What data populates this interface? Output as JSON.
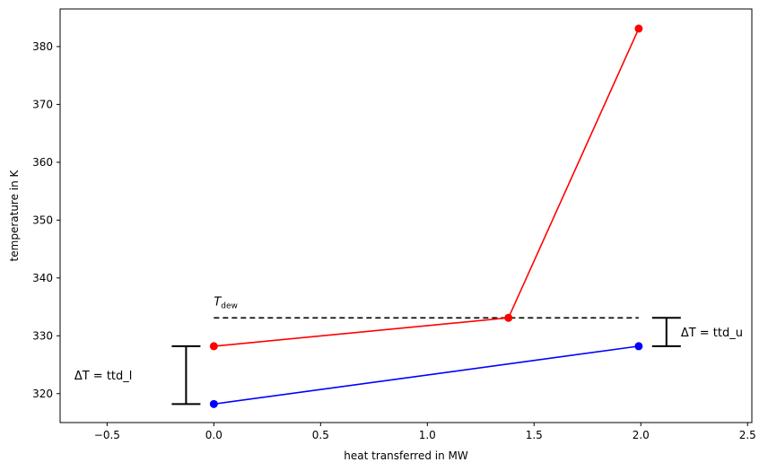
{
  "chart_data": {
    "type": "line",
    "title": "",
    "xlabel": "heat transferred in MW",
    "ylabel": "temperature in K",
    "xlim": [
      -0.72,
      2.52
    ],
    "ylim": [
      315,
      386.5
    ],
    "xticks": [
      -0.5,
      0.0,
      0.5,
      1.0,
      1.5,
      2.0,
      2.5
    ],
    "xtick_labels": [
      "−0.5",
      "0.0",
      "0.5",
      "1.0",
      "1.5",
      "2.0",
      "2.5"
    ],
    "yticks": [
      320,
      330,
      340,
      350,
      360,
      370,
      380
    ],
    "ytick_labels": [
      "320",
      "330",
      "340",
      "350",
      "360",
      "370",
      "380"
    ],
    "grid": false,
    "series": [
      {
        "color": "#ff0000",
        "x": [
          0.0,
          1.38,
          1.99
        ],
        "y": [
          328.2,
          333.1,
          383.1
        ]
      },
      {
        "color": "#0000ff",
        "x": [
          0.0,
          1.99
        ],
        "y": [
          318.2,
          328.2
        ]
      }
    ],
    "dew_line": {
      "x": [
        0.0,
        1.99
      ],
      "y": 333.1,
      "label_main": "T",
      "label_sub": "dew"
    },
    "bracket_lower": {
      "x": -0.13,
      "y": [
        318.2,
        328.2
      ],
      "label": "ΔT = ttd_l"
    },
    "bracket_upper": {
      "x": 2.12,
      "y": [
        328.2,
        333.1
      ],
      "label": "ΔT = ttd_u"
    }
  }
}
